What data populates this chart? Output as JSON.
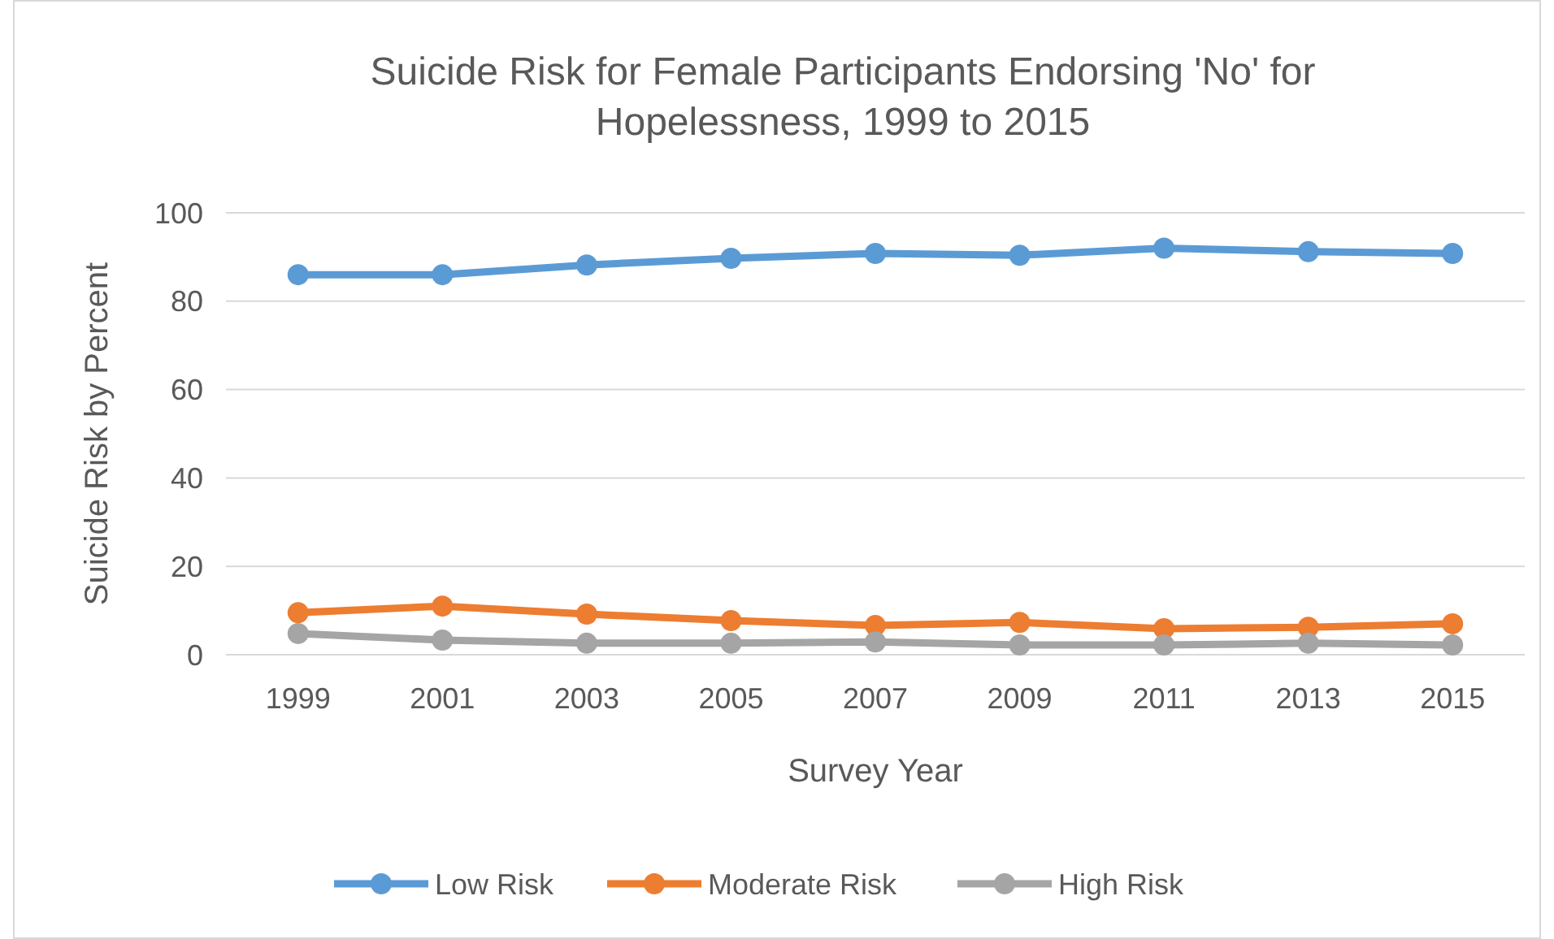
{
  "chart_data": {
    "type": "line",
    "title": "Suicide Risk for Female Participants Endorsing 'No' for Hopelessness, 1999 to 2015",
    "xlabel": "Survey Year",
    "ylabel": "Suicide Risk by Percent",
    "categories": [
      "1999",
      "2001",
      "2003",
      "2005",
      "2007",
      "2009",
      "2011",
      "2013",
      "2015"
    ],
    "series": [
      {
        "name": "Low Risk",
        "color": "#5b9bd5",
        "values": [
          86,
          86,
          88.2,
          89.7,
          90.8,
          90.4,
          92,
          91.2,
          90.8
        ]
      },
      {
        "name": "Moderate Risk",
        "color": "#ed7d31",
        "values": [
          9.5,
          11,
          9.2,
          7.7,
          6.6,
          7.3,
          5.9,
          6.2,
          7
        ]
      },
      {
        "name": "High Risk",
        "color": "#a5a5a5",
        "values": [
          4.8,
          3.3,
          2.6,
          2.6,
          2.9,
          2.2,
          2.2,
          2.6,
          2.2
        ]
      }
    ],
    "ylim": [
      0,
      100
    ],
    "yticks": [
      0,
      20,
      40,
      60,
      80,
      100
    ],
    "grid": "y",
    "legend": "bottom",
    "marker": "circle",
    "line_style": "solid"
  }
}
